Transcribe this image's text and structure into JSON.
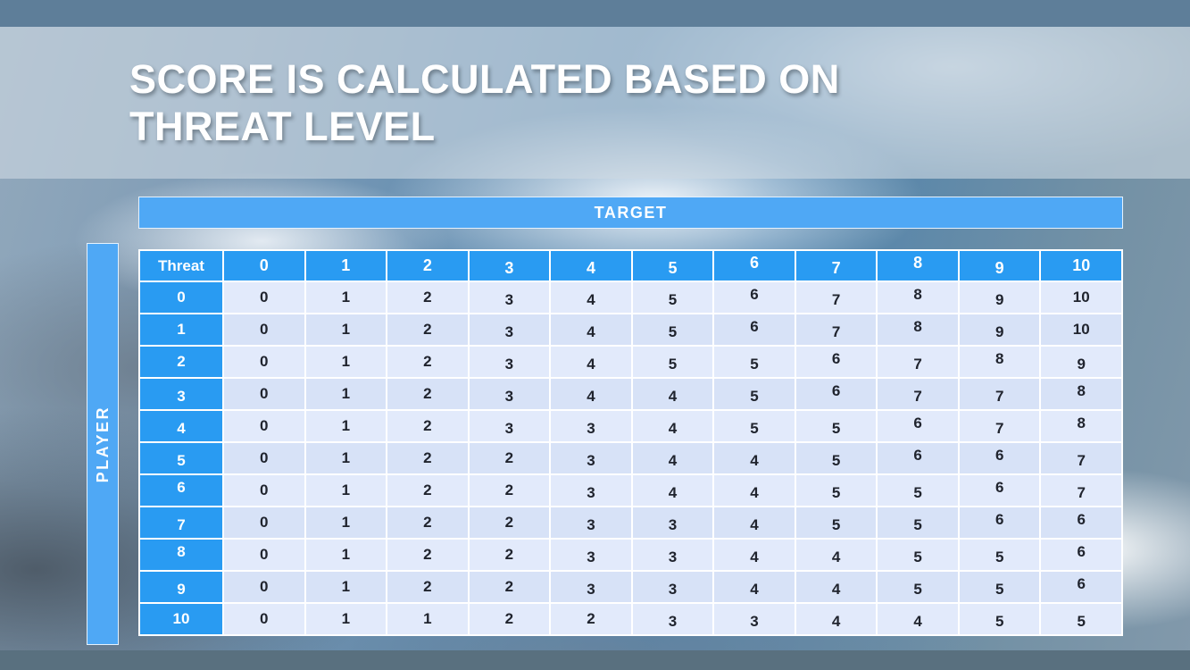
{
  "slide": {
    "title_line1": "SCORE IS CALCULATED BASED ON",
    "title_line2": "THREAT LEVEL"
  },
  "table": {
    "target_label": "TARGET",
    "player_label": "PLAYER",
    "corner_label": "Threat",
    "column_headers": [
      "0",
      "1",
      "2",
      "3",
      "4",
      "5",
      "6",
      "7",
      "8",
      "9",
      "10"
    ],
    "rows": [
      {
        "threat": "0",
        "values": [
          "0",
          "1",
          "2",
          "3",
          "4",
          "5",
          "6",
          "7",
          "8",
          "9",
          "10"
        ]
      },
      {
        "threat": "1",
        "values": [
          "0",
          "1",
          "2",
          "3",
          "4",
          "5",
          "6",
          "7",
          "8",
          "9",
          "10"
        ]
      },
      {
        "threat": "2",
        "values": [
          "0",
          "1",
          "2",
          "3",
          "4",
          "5",
          "5",
          "6",
          "7",
          "8",
          "9"
        ]
      },
      {
        "threat": "3",
        "values": [
          "0",
          "1",
          "2",
          "3",
          "4",
          "4",
          "5",
          "6",
          "7",
          "7",
          "8"
        ]
      },
      {
        "threat": "4",
        "values": [
          "0",
          "1",
          "2",
          "3",
          "3",
          "4",
          "5",
          "5",
          "6",
          "7",
          "8"
        ]
      },
      {
        "threat": "5",
        "values": [
          "0",
          "1",
          "2",
          "2",
          "3",
          "4",
          "4",
          "5",
          "6",
          "6",
          "7"
        ]
      },
      {
        "threat": "6",
        "values": [
          "0",
          "1",
          "2",
          "2",
          "3",
          "4",
          "4",
          "5",
          "5",
          "6",
          "7"
        ]
      },
      {
        "threat": "7",
        "values": [
          "0",
          "1",
          "2",
          "2",
          "3",
          "3",
          "4",
          "5",
          "5",
          "6",
          "6"
        ]
      },
      {
        "threat": "8",
        "values": [
          "0",
          "1",
          "2",
          "2",
          "3",
          "3",
          "4",
          "4",
          "5",
          "5",
          "6"
        ]
      },
      {
        "threat": "9",
        "values": [
          "0",
          "1",
          "2",
          "2",
          "3",
          "3",
          "4",
          "4",
          "5",
          "5",
          "6"
        ]
      },
      {
        "threat": "10",
        "values": [
          "0",
          "1",
          "1",
          "2",
          "2",
          "3",
          "3",
          "4",
          "4",
          "5",
          "5"
        ]
      }
    ]
  },
  "colors": {
    "header_blue": "#299bf2",
    "bar_blue": "#4fa8f5",
    "cell_light": "#e2eafb",
    "cell_alt": "#d7e2f7",
    "strip_top": "#5e7e99",
    "strip_bottom": "#59707f",
    "title_text": "#ffffff"
  }
}
